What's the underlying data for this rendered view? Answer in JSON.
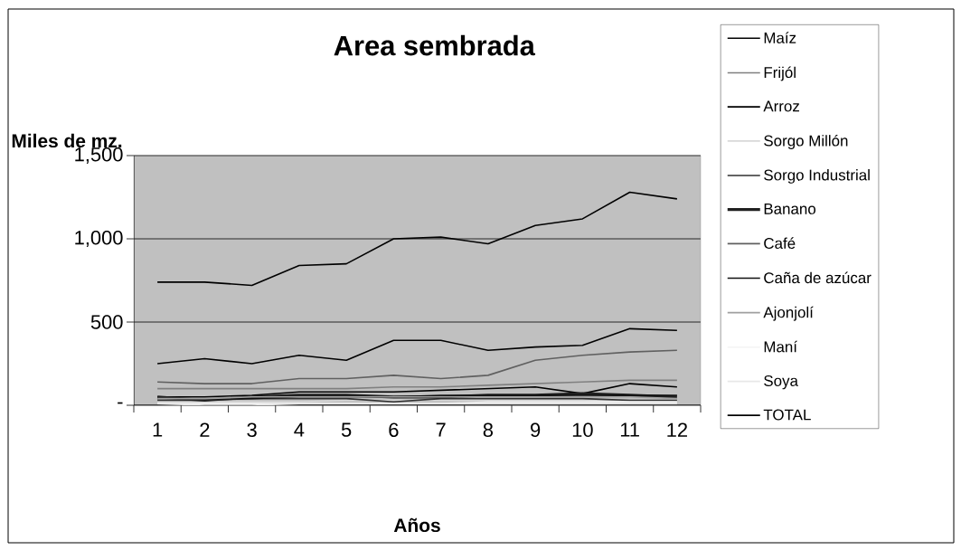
{
  "chart_data": {
    "type": "line",
    "title": "Area sembrada",
    "xlabel": "Años",
    "ylabel": "Miles de mz.",
    "categories": [
      "1",
      "2",
      "3",
      "4",
      "5",
      "6",
      "7",
      "8",
      "9",
      "10",
      "11",
      "12"
    ],
    "series": [
      {
        "name": "Maíz",
        "color": "#000000",
        "values": [
          250,
          280,
          250,
          300,
          270,
          390,
          390,
          330,
          350,
          360,
          460,
          450
        ]
      },
      {
        "name": "Frijól",
        "color": "#808080",
        "values": [
          100,
          100,
          100,
          100,
          100,
          110,
          110,
          120,
          130,
          140,
          150,
          150
        ]
      },
      {
        "name": "Arroz",
        "color": "#000000",
        "values": [
          50,
          50,
          60,
          80,
          80,
          80,
          90,
          100,
          110,
          70,
          130,
          110
        ]
      },
      {
        "name": "Sorgo Millón",
        "color": "#d8d8d8",
        "values": [
          20,
          20,
          20,
          20,
          30,
          30,
          30,
          30,
          30,
          30,
          20,
          20
        ]
      },
      {
        "name": "Sorgo Industrial",
        "color": "#303030",
        "values": [
          30,
          30,
          40,
          40,
          40,
          20,
          40,
          40,
          40,
          40,
          30,
          30
        ]
      },
      {
        "name": "Banano",
        "color": "#202020",
        "values": [
          50,
          30,
          50,
          60,
          60,
          50,
          50,
          60,
          60,
          70,
          60,
          50
        ]
      },
      {
        "name": "Café",
        "color": "#606060",
        "values": [
          140,
          130,
          130,
          160,
          160,
          180,
          160,
          180,
          270,
          300,
          320,
          330
        ]
      },
      {
        "name": "Caña de azúcar",
        "color": "#101010",
        "values": [
          40,
          40,
          40,
          50,
          50,
          50,
          60,
          60,
          60,
          60,
          60,
          60
        ]
      },
      {
        "name": "Ajonjolí",
        "color": "#a0a0a0",
        "values": [
          40,
          40,
          50,
          50,
          50,
          50,
          50,
          50,
          50,
          50,
          50,
          40
        ]
      },
      {
        "name": "Maní",
        "color": "#f4f4f4",
        "values": [
          10,
          10,
          10,
          10,
          10,
          10,
          10,
          20,
          20,
          20,
          20,
          20
        ]
      },
      {
        "name": "Soya",
        "color": "#e8e8e8",
        "values": [
          10,
          0,
          0,
          10,
          10,
          10,
          10,
          10,
          10,
          10,
          10,
          10
        ]
      },
      {
        "name": "TOTAL",
        "color": "#000000",
        "values": [
          740,
          740,
          720,
          840,
          850,
          1000,
          1010,
          970,
          1080,
          1120,
          1280,
          1240
        ]
      }
    ],
    "ylim": [
      0,
      1500
    ],
    "yticks": [
      {
        "value": 0,
        "label": "-"
      },
      {
        "value": 500,
        "label": "500"
      },
      {
        "value": 1000,
        "label": "1,000"
      },
      {
        "value": 1500,
        "label": "1,500"
      }
    ],
    "grid": "y",
    "legend": "right"
  }
}
